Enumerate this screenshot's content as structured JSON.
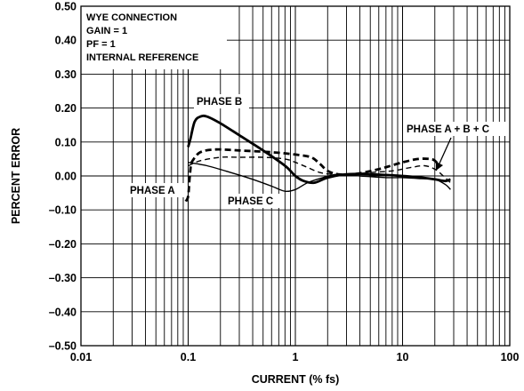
{
  "chart_data": {
    "type": "line",
    "xscale": "log",
    "xlim": [
      0.01,
      100
    ],
    "ylim": [
      -0.5,
      0.5
    ],
    "grid": true,
    "xlabel": "CURRENT (% fs)",
    "ylabel": "PERCENT ERROR",
    "xticks": [
      "0.01",
      "0.1",
      "1",
      "10",
      "100"
    ],
    "yticks": [
      "0.50",
      "0.40",
      "0.30",
      "0.20",
      "0.10",
      "0.00",
      "–0.10",
      "–0.20",
      "–0.30",
      "–0.40",
      "–0.50"
    ],
    "info_box": [
      "WYE CONNECTION",
      "GAIN = 1",
      "PF = 1",
      "INTERNAL REFERENCE"
    ],
    "annotations": {
      "phase_a": "PHASE A",
      "phase_b": "PHASE B",
      "phase_c": "PHASE C",
      "phase_abc": "PHASE A + B + C"
    },
    "series": [
      {
        "name": "PHASE A",
        "style": "dashed-thick",
        "x": [
          0.095,
          0.1,
          0.103,
          0.106,
          0.11,
          0.13,
          0.18,
          0.3,
          0.6,
          1.0,
          1.4,
          1.7,
          2.0,
          2.5,
          3.5,
          6,
          10,
          14,
          18,
          20,
          22
        ],
        "y": [
          -0.075,
          -0.06,
          -0.01,
          0.03,
          0.045,
          0.07,
          0.078,
          0.075,
          0.07,
          0.063,
          0.055,
          0.035,
          0.015,
          0.005,
          0.005,
          0.02,
          0.04,
          0.05,
          0.05,
          0.045,
          0.03
        ]
      },
      {
        "name": "PHASE B",
        "style": "solid-thick",
        "x": [
          0.1,
          0.105,
          0.115,
          0.13,
          0.15,
          0.2,
          0.3,
          0.5,
          0.8,
          1.0,
          1.2,
          1.5,
          2.0,
          3,
          5,
          10,
          15,
          20,
          25,
          28
        ],
        "y": [
          0.085,
          0.11,
          0.16,
          0.175,
          0.175,
          0.155,
          0.12,
          0.075,
          0.03,
          0.0,
          -0.015,
          -0.02,
          -0.005,
          0.005,
          0.005,
          0.0,
          -0.005,
          -0.01,
          -0.015,
          -0.01
        ]
      },
      {
        "name": "PHASE C",
        "style": "solid-thin",
        "x": [
          0.1,
          0.15,
          0.25,
          0.4,
          0.6,
          0.8,
          1.0,
          1.3,
          1.8,
          2.5,
          4,
          7,
          10,
          15,
          20,
          25,
          28
        ],
        "y": [
          0.04,
          0.03,
          0.01,
          -0.01,
          -0.03,
          -0.045,
          -0.04,
          -0.02,
          -0.005,
          0.005,
          0.0,
          -0.005,
          -0.005,
          -0.008,
          -0.01,
          -0.025,
          -0.04
        ]
      },
      {
        "name": "PHASE A + B + C",
        "style": "dashed-thin",
        "x": [
          0.1,
          0.13,
          0.2,
          0.3,
          0.5,
          0.8,
          1.0,
          1.3,
          1.7,
          2.2,
          3,
          5,
          8,
          12,
          16,
          20,
          24,
          28
        ],
        "y": [
          0.03,
          0.045,
          0.055,
          0.055,
          0.055,
          0.05,
          0.04,
          0.025,
          0.01,
          0.005,
          0.005,
          0.01,
          0.015,
          0.025,
          0.03,
          0.02,
          0.0,
          -0.02
        ]
      }
    ]
  }
}
